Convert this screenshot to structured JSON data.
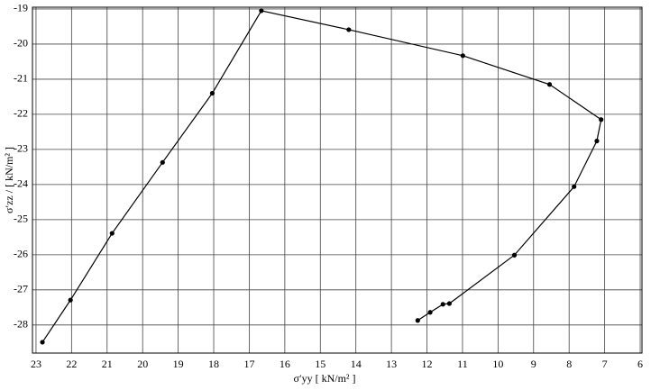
{
  "chart_data": {
    "type": "line",
    "x_label": "σ′yy [ kN/m² ]",
    "y_label": "σ′zz / [ kN/m² ]",
    "x": [
      22.82,
      22.03,
      20.86,
      19.44,
      18.04,
      16.66,
      14.2,
      10.99,
      8.55,
      7.1,
      7.22,
      7.86,
      9.54,
      11.37,
      11.55,
      11.91,
      12.26
    ],
    "values": [
      -28.49,
      -27.29,
      -25.39,
      -23.37,
      -21.4,
      -19.05,
      -19.59,
      -20.33,
      -21.15,
      -22.15,
      -22.76,
      -24.06,
      -26.01,
      -27.39,
      -27.41,
      -27.64,
      -27.87
    ],
    "color": "#000000",
    "xlim": [
      23.1,
      5.95
    ],
    "ylim": [
      -28.8,
      -18.95
    ],
    "xticks": [
      23,
      22,
      21,
      20,
      19,
      18,
      17,
      16,
      15,
      14,
      13,
      12,
      11,
      10,
      9,
      8,
      7,
      6
    ],
    "yticks": [
      -28,
      -27,
      -26,
      -25,
      -24,
      -23,
      -22,
      -21,
      -20,
      -19
    ],
    "grid": true
  }
}
